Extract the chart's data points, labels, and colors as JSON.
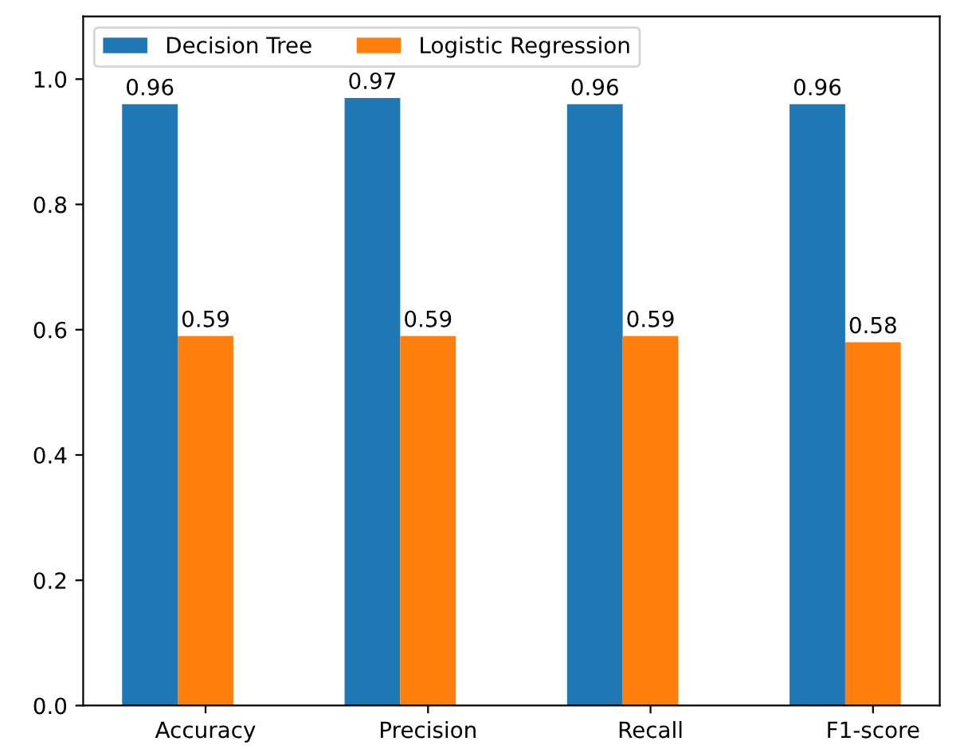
{
  "chart_data": {
    "type": "bar",
    "categories": [
      "Accuracy",
      "Precision",
      "Recall",
      "F1-score"
    ],
    "series": [
      {
        "name": "Decision Tree",
        "color": "#1f77b4",
        "values": [
          0.96,
          0.97,
          0.96,
          0.96
        ]
      },
      {
        "name": "Logistic Regression",
        "color": "#ff7f0e",
        "values": [
          0.59,
          0.59,
          0.59,
          0.58
        ]
      }
    ],
    "ylim": [
      0,
      1.1
    ],
    "yticks": [
      {
        "value": 0,
        "label": "0.0"
      },
      0.2,
      0.4,
      0.6,
      0.8,
      {
        "value": 1,
        "label": "1.0"
      }
    ],
    "data_labels": true,
    "grid": false,
    "legend": "top left"
  }
}
